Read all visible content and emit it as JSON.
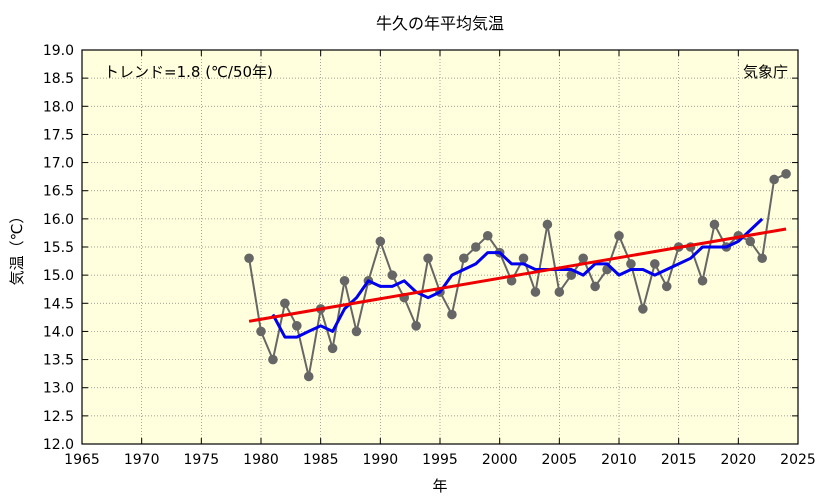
{
  "chart_data": {
    "type": "line",
    "title": "牛久の年平均気温",
    "xlabel": "年",
    "ylabel": "気温（℃）",
    "xlim": [
      1965,
      2025
    ],
    "ylim": [
      12.0,
      19.0
    ],
    "x_ticks": [
      1965,
      1970,
      1975,
      1980,
      1985,
      1990,
      1995,
      2000,
      2005,
      2010,
      2015,
      2020,
      2025
    ],
    "y_ticks": [
      "12.0",
      "12.5",
      "13.0",
      "13.5",
      "14.0",
      "14.5",
      "15.0",
      "15.5",
      "16.0",
      "16.5",
      "17.0",
      "17.5",
      "18.0",
      "18.5",
      "19.0"
    ],
    "grid": true,
    "background_color": "#ffffdd",
    "trend_label": "トレンド=1.8 (℃/50年)",
    "source_label": "気象庁",
    "series": [
      {
        "kind": "annual",
        "color": "#666666",
        "x": [
          1979,
          1980,
          1981,
          1982,
          1983,
          1984,
          1985,
          1986,
          1987,
          1988,
          1989,
          1990,
          1991,
          1992,
          1993,
          1994,
          1995,
          1996,
          1997,
          1998,
          1999,
          2000,
          2001,
          2002,
          2003,
          2004,
          2005,
          2006,
          2007,
          2008,
          2009,
          2010,
          2011,
          2012,
          2013,
          2014,
          2015,
          2016,
          2017,
          2018,
          2019,
          2020,
          2021,
          2022,
          2023,
          2024
        ],
        "y": [
          15.3,
          14.0,
          13.5,
          14.5,
          14.1,
          13.2,
          14.4,
          13.7,
          14.9,
          14.0,
          14.9,
          15.6,
          15.0,
          14.6,
          14.1,
          15.3,
          14.7,
          14.3,
          15.3,
          15.5,
          15.7,
          15.4,
          14.9,
          15.3,
          14.7,
          15.9,
          14.7,
          15.0,
          15.3,
          14.8,
          15.1,
          15.7,
          15.2,
          14.4,
          15.2,
          14.8,
          15.5,
          15.5,
          14.9,
          15.9,
          15.5,
          15.7,
          15.6,
          15.3,
          16.7,
          16.8
        ]
      },
      {
        "kind": "moving_average",
        "color": "#0000ee",
        "x": [
          1981,
          1982,
          1983,
          1984,
          1985,
          1986,
          1987,
          1988,
          1989,
          1990,
          1991,
          1992,
          1993,
          1994,
          1995,
          1996,
          1997,
          1998,
          1999,
          2000,
          2001,
          2002,
          2003,
          2004,
          2005,
          2006,
          2007,
          2008,
          2009,
          2010,
          2011,
          2012,
          2013,
          2014,
          2015,
          2016,
          2017,
          2018,
          2019,
          2020,
          2021,
          2022
        ],
        "y": [
          14.3,
          13.9,
          13.9,
          14.0,
          14.1,
          14.0,
          14.4,
          14.6,
          14.9,
          14.8,
          14.8,
          14.9,
          14.7,
          14.6,
          14.7,
          15.0,
          15.1,
          15.2,
          15.4,
          15.4,
          15.2,
          15.2,
          15.1,
          15.1,
          15.1,
          15.1,
          15.0,
          15.2,
          15.2,
          15.0,
          15.1,
          15.1,
          15.0,
          15.1,
          15.2,
          15.3,
          15.5,
          15.5,
          15.5,
          15.6,
          15.8,
          16.0
        ]
      },
      {
        "kind": "trend",
        "color": "#ee0000",
        "x": [
          1979,
          2024
        ],
        "y": [
          14.18,
          15.82
        ]
      }
    ]
  }
}
